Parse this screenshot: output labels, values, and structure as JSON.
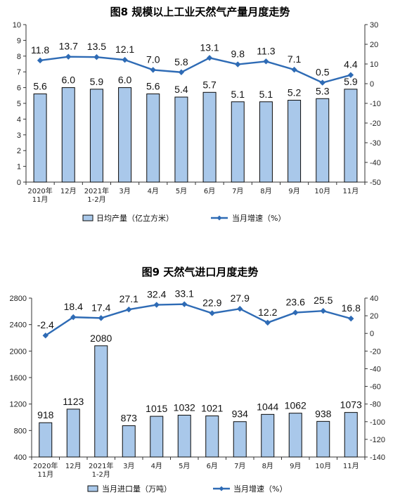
{
  "chart_data": [
    {
      "type": "bar+line",
      "title": "图8 规模以上工业天然气产量月度走势",
      "categories": [
        "2020年\n11月",
        "12月",
        "2021年\n1-2月",
        "3月",
        "4月",
        "5月",
        "6月",
        "7月",
        "8月",
        "9月",
        "10月",
        "11月"
      ],
      "series": [
        {
          "name": "日均产量（亿立方米）",
          "type": "bar",
          "axis": "left",
          "values": [
            5.6,
            6.0,
            5.9,
            6.0,
            5.6,
            5.4,
            5.7,
            5.1,
            5.1,
            5.2,
            5.3,
            5.9
          ],
          "labels": [
            "5.6",
            "6.0",
            "5.9",
            "6.0",
            "5.6",
            "5.4",
            "5.7",
            "5.1",
            "5.1",
            "5.2",
            "5.3",
            "5.9"
          ]
        },
        {
          "name": "当月增速（%）",
          "type": "line",
          "axis": "right",
          "values": [
            11.8,
            13.7,
            13.5,
            12.1,
            7.0,
            5.8,
            13.1,
            9.8,
            11.3,
            7.1,
            0.5,
            4.4
          ],
          "labels": [
            "11.8",
            "13.7",
            "13.5",
            "12.1",
            "7.0",
            "5.8",
            "13.1",
            "9.8",
            "11.3",
            "7.1",
            "0.5",
            "4.4"
          ]
        }
      ],
      "ylim_left": [
        0,
        10
      ],
      "yticks_left": [
        "0",
        "1",
        "2",
        "3",
        "4",
        "5",
        "6",
        "7",
        "8",
        "9",
        "10"
      ],
      "ylim_right": [
        -50,
        30
      ],
      "yticks_right": [
        "-50",
        "-40",
        "-30",
        "-20",
        "-10",
        "0",
        "10",
        "20",
        "30"
      ],
      "grid": false,
      "legend_position": "bottom"
    },
    {
      "type": "bar+line",
      "title": "图9 天然气进口月度走势",
      "categories": [
        "2020年\n11月",
        "12月",
        "2021年\n1-2月",
        "3月",
        "4月",
        "5月",
        "6月",
        "7月",
        "8月",
        "9月",
        "10月",
        "11月"
      ],
      "series": [
        {
          "name": "当月进口量（万吨）",
          "type": "bar",
          "axis": "left",
          "values": [
            918,
            1123,
            2080,
            873,
            1015,
            1032,
            1021,
            934,
            1044,
            1062,
            938,
            1073
          ],
          "labels": [
            "918",
            "1123",
            "2080",
            "873",
            "1015",
            "1032",
            "1021",
            "934",
            "1044",
            "1062",
            "938",
            "1073"
          ]
        },
        {
          "name": "当月增速（%）",
          "type": "line",
          "axis": "right",
          "values": [
            -2.4,
            18.4,
            17.4,
            27.1,
            32.4,
            33.1,
            22.9,
            27.9,
            12.2,
            23.6,
            25.5,
            16.8
          ],
          "labels": [
            "-2.4",
            "18.4",
            "17.4",
            "27.1",
            "32.4",
            "33.1",
            "22.9",
            "27.9",
            "12.2",
            "23.6",
            "25.5",
            "16.8"
          ]
        }
      ],
      "ylim_left": [
        400,
        2800
      ],
      "yticks_left": [
        "400",
        "800",
        "1200",
        "1600",
        "2000",
        "2400",
        "2800"
      ],
      "ylim_right": [
        -140,
        40
      ],
      "yticks_right": [
        "-140",
        "-120",
        "-100",
        "-80",
        "-60",
        "-40",
        "-20",
        "0",
        "20",
        "40"
      ],
      "grid": false,
      "legend_position": "bottom"
    }
  ],
  "colors": {
    "bar_fill": "#a9c8ea",
    "bar_stroke": "#0b0b0b",
    "line": "#2e6bb5"
  }
}
